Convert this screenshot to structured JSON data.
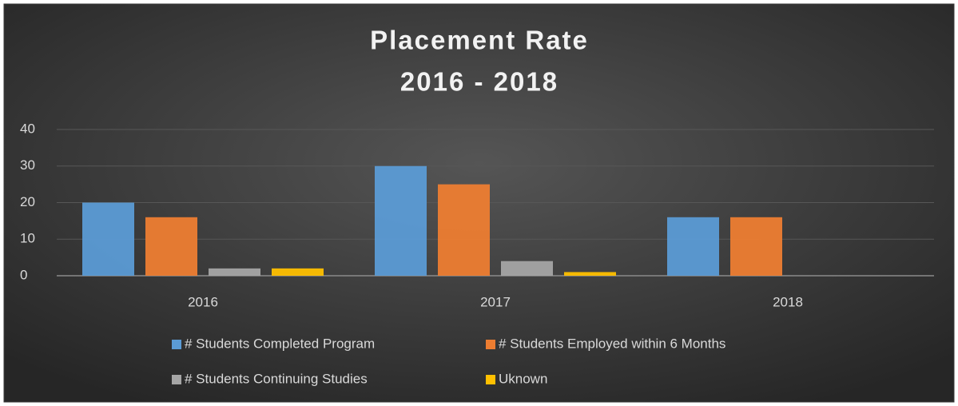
{
  "chart_data": {
    "type": "bar",
    "title": "Placement Rate",
    "subtitle": "2016 - 2018",
    "categories": [
      "2016",
      "2017",
      "2018"
    ],
    "series": [
      {
        "name": "# Students Completed Program",
        "color": "#5b9bd5",
        "values": [
          20,
          30,
          16
        ]
      },
      {
        "name": "# Students Employed within 6 Months",
        "color": "#ed7d31",
        "values": [
          16,
          25,
          16
        ]
      },
      {
        "name": "# Students Continuing Studies",
        "color": "#a5a5a5",
        "values": [
          2,
          4,
          0
        ]
      },
      {
        "name": "Uknown",
        "color": "#ffc000",
        "values": [
          2,
          1,
          0
        ]
      }
    ],
    "ylim": [
      0,
      40
    ],
    "yticks": [
      0,
      10,
      20,
      30,
      40
    ],
    "grid": true,
    "legend": "bottom"
  }
}
